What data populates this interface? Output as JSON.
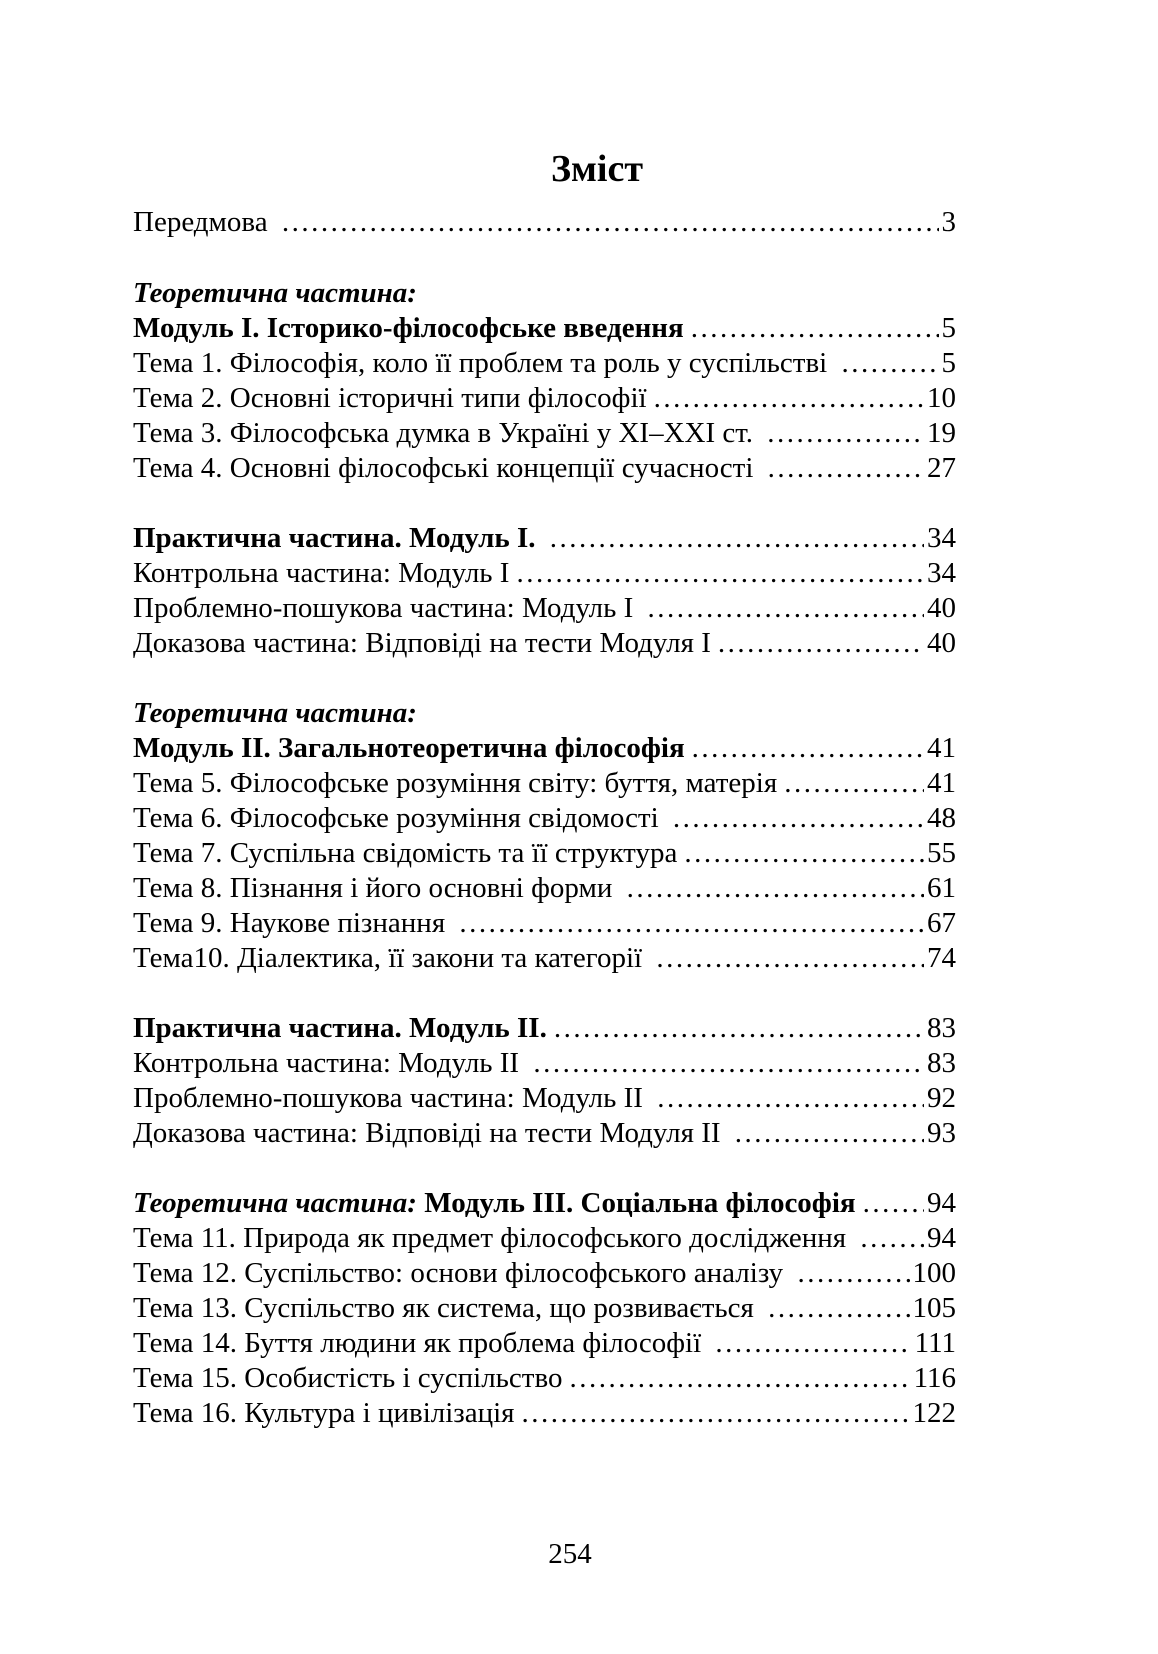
{
  "page": {
    "title": "Зміст",
    "footer_page_number": "254"
  },
  "toc_groups": [
    {
      "name": "preface",
      "entries": [
        {
          "parts": [
            {
              "text": "Передмова ",
              "style": "n"
            }
          ],
          "page": "3"
        }
      ]
    },
    {
      "name": "theory-module-1",
      "entries": [
        {
          "parts": [
            {
              "text": "Теоретична частина:",
              "style": "bi"
            }
          ],
          "page": null
        },
        {
          "parts": [
            {
              "text": "Модуль І. Історико-філософське введення",
              "style": "b"
            }
          ],
          "page": "5"
        },
        {
          "parts": [
            {
              "text": "Тема 1. Філософія, коло її проблем та роль у суспільстві ",
              "style": "n"
            }
          ],
          "page": "5"
        },
        {
          "parts": [
            {
              "text": "Тема 2. Основні історичні типи філософії",
              "style": "n"
            }
          ],
          "page": "10"
        },
        {
          "parts": [
            {
              "text": "Тема 3. Філософська думка в Україні у ХІ–ХХІ ст. ",
              "style": "n"
            }
          ],
          "page": "19"
        },
        {
          "parts": [
            {
              "text": "Тема 4. Основні філософські концепції сучасності ",
              "style": "n"
            }
          ],
          "page": "27"
        }
      ]
    },
    {
      "name": "practice-module-1",
      "entries": [
        {
          "parts": [
            {
              "text": "Практична частина. Модуль І. ",
              "style": "b"
            }
          ],
          "page": "34"
        },
        {
          "parts": [
            {
              "text": "Контрольна частина: Модуль І",
              "style": "n"
            }
          ],
          "page": "34"
        },
        {
          "parts": [
            {
              "text": "Проблемно-пошукова частина: Модуль І ",
              "style": "n"
            }
          ],
          "page": "40"
        },
        {
          "parts": [
            {
              "text": "Доказова частина: Відповіді на тести Модуля І",
              "style": "n"
            }
          ],
          "page": "40"
        }
      ]
    },
    {
      "name": "theory-module-2",
      "entries": [
        {
          "parts": [
            {
              "text": "Теоретична частина:",
              "style": "bi"
            }
          ],
          "page": null
        },
        {
          "parts": [
            {
              "text": "Модуль ІІ. Загальнотеоретична філософія",
              "style": "b"
            }
          ],
          "page": "41"
        },
        {
          "parts": [
            {
              "text": "Тема 5. Філософське розуміння світу: буття, матерія",
              "style": "n"
            }
          ],
          "page": "41"
        },
        {
          "parts": [
            {
              "text": "Тема 6. Філософське розуміння свідомості ",
              "style": "n"
            }
          ],
          "page": "48"
        },
        {
          "parts": [
            {
              "text": "Тема 7. Суспільна свідомість та її структура",
              "style": "n"
            }
          ],
          "page": "55"
        },
        {
          "parts": [
            {
              "text": "Тема 8. Пізнання і його основні форми ",
              "style": "n"
            }
          ],
          "page": "61"
        },
        {
          "parts": [
            {
              "text": "Тема 9. Наукове пізнання ",
              "style": "n"
            }
          ],
          "page": " 67"
        },
        {
          "parts": [
            {
              "text": "Тема10. Діалектика, її закони та категорії ",
              "style": "n"
            }
          ],
          "page": "74"
        }
      ]
    },
    {
      "name": "practice-module-2",
      "entries": [
        {
          "parts": [
            {
              "text": "Практична частина. Модуль ІІ.",
              "style": "b"
            }
          ],
          "page": "83"
        },
        {
          "parts": [
            {
              "text": "Контрольна частина: Модуль ІІ ",
              "style": "n"
            }
          ],
          "page": "83"
        },
        {
          "parts": [
            {
              "text": "Проблемно-пошукова частина: Модуль ІІ ",
              "style": "n"
            }
          ],
          "page": "92"
        },
        {
          "parts": [
            {
              "text": "Доказова частина: Відповіді на тести Модуля ІІ ",
              "style": "n"
            }
          ],
          "page": "93"
        }
      ]
    },
    {
      "name": "theory-module-3",
      "entries": [
        {
          "parts": [
            {
              "text": "Теоретична частина: ",
              "style": "bi"
            },
            {
              "text": "Модуль ІІІ. Соціальна філософія",
              "style": "b"
            }
          ],
          "page": "94"
        },
        {
          "parts": [
            {
              "text": "Тема 11. Природа як предмет філософського дослідження ",
              "style": "n"
            }
          ],
          "page": "94"
        },
        {
          "parts": [
            {
              "text": "Тема 12. Суспільство: основи філософського аналізу ",
              "style": "n"
            }
          ],
          "page": "100"
        },
        {
          "parts": [
            {
              "text": "Тема 13. Суспільство як система, що розвивається ",
              "style": "n"
            }
          ],
          "page": "105"
        },
        {
          "parts": [
            {
              "text": "Тема 14. Буття людини як проблема філософії ",
              "style": "n"
            }
          ],
          "page": "111"
        },
        {
          "parts": [
            {
              "text": "Тема 15. Особистість і суспільство",
              "style": "n"
            }
          ],
          "page": "116"
        },
        {
          "parts": [
            {
              "text": "Тема 16. Культура і цивілізація",
              "style": "n"
            }
          ],
          "page": "122"
        }
      ]
    }
  ]
}
